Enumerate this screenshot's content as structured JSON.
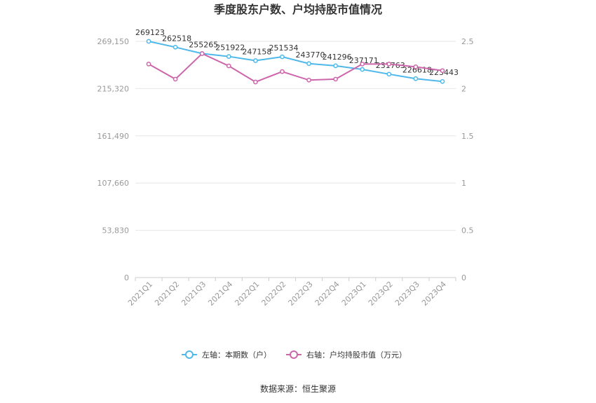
{
  "chart_data": {
    "type": "line",
    "title": "季度股东户数、户均持股市值情况",
    "categories": [
      "2021Q1",
      "2021Q2",
      "2021Q3",
      "2021Q4",
      "2022Q1",
      "2022Q2",
      "2022Q3",
      "2022Q4",
      "2023Q1",
      "2023Q2",
      "2023Q3",
      "2023Q4"
    ],
    "left_axis": {
      "min": 0,
      "max": 269150,
      "ticks": [
        0,
        53830,
        107660,
        161490,
        215320,
        269150
      ],
      "tick_labels": [
        "0",
        "53,830",
        "107,660",
        "161,490",
        "215,320",
        "269,150"
      ]
    },
    "right_axis": {
      "min": 0,
      "max": 2.5,
      "ticks": [
        0,
        0.5,
        1,
        1.5,
        2,
        2.5
      ],
      "tick_labels": [
        "0",
        "0.5",
        "1",
        "1.5",
        "2",
        "2.5"
      ]
    },
    "series": [
      {
        "name": "左轴：本期数（户）",
        "axis": "left",
        "color": "#4fb8ea",
        "values": [
          269123,
          262518,
          255265,
          251922,
          247158,
          251534,
          243770,
          241296,
          237171,
          231763,
          226618,
          223443
        ],
        "labels": [
          "269123",
          "262518",
          "255265",
          "251922",
          "247158",
          "251534",
          "243770",
          "241296",
          "237171",
          "231763",
          "226618",
          "223443"
        ]
      },
      {
        "name": "右轴：户均持股市值（万元）",
        "axis": "right",
        "color": "#cc66aa",
        "values": [
          2.26,
          2.1,
          2.37,
          2.24,
          2.07,
          2.18,
          2.09,
          2.1,
          2.26,
          2.26,
          2.23,
          2.19
        ]
      }
    ],
    "grid": true,
    "legend_position": "bottom"
  },
  "source_text": "数据来源：恒生聚源"
}
